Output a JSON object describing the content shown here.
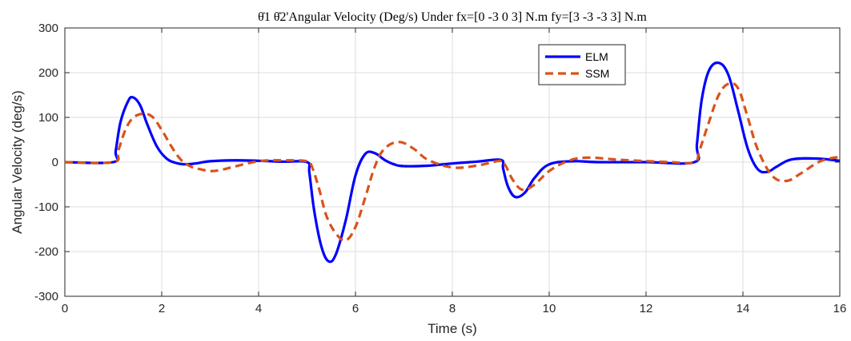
{
  "chart_data": {
    "type": "line",
    "title": "θ̇1 θ̇2'Angular Velocity (Deg/s) Under fx=[0 -3 0 3] N.m fy=[3 -3 -3 3] N.m",
    "xlabel": "Time (s)",
    "ylabel": "Angular Velocity (deg/s)",
    "xlim": [
      0,
      16
    ],
    "ylim": [
      -300,
      300
    ],
    "xticks": [
      0,
      2,
      4,
      6,
      8,
      10,
      12,
      14,
      16
    ],
    "yticks": [
      -300,
      -200,
      -100,
      0,
      100,
      200,
      300
    ],
    "grid": true,
    "legend_position": "top-right",
    "series": [
      {
        "name": "ELM",
        "color": "#0000ff",
        "style": "solid",
        "x": [
          0,
          1.0,
          1.05,
          1.15,
          1.3,
          1.4,
          1.55,
          1.7,
          1.9,
          2.1,
          2.3,
          2.5,
          2.7,
          3.0,
          3.5,
          4.0,
          4.5,
          5.0,
          5.05,
          5.15,
          5.3,
          5.45,
          5.6,
          5.8,
          6.0,
          6.2,
          6.4,
          6.6,
          6.8,
          7.0,
          7.5,
          8.0,
          8.5,
          9.0,
          9.05,
          9.15,
          9.3,
          9.5,
          9.7,
          10.0,
          10.5,
          11.0,
          12.0,
          13.0,
          13.05,
          13.15,
          13.3,
          13.5,
          13.7,
          13.9,
          14.1,
          14.3,
          14.5,
          14.7,
          15.0,
          15.5,
          16.0
        ],
        "y": [
          0,
          0,
          25,
          90,
          135,
          145,
          128,
          85,
          35,
          8,
          -2,
          -5,
          -3,
          2,
          4,
          3,
          1,
          0,
          -25,
          -110,
          -190,
          -222,
          -205,
          -130,
          -30,
          18,
          20,
          5,
          -5,
          -9,
          -8,
          -3,
          1,
          5,
          -15,
          -55,
          -78,
          -68,
          -35,
          -5,
          2,
          0,
          0,
          0,
          40,
          140,
          205,
          222,
          195,
          115,
          30,
          -15,
          -22,
          -10,
          6,
          8,
          3
        ]
      },
      {
        "name": "SSM",
        "color": "#d95319",
        "style": "dashed",
        "x": [
          0,
          1.0,
          1.1,
          1.25,
          1.4,
          1.6,
          1.8,
          2.0,
          2.2,
          2.4,
          2.6,
          2.8,
          3.0,
          3.2,
          3.5,
          4.0,
          4.5,
          5.0,
          5.1,
          5.25,
          5.4,
          5.6,
          5.8,
          6.0,
          6.2,
          6.4,
          6.6,
          6.9,
          7.2,
          7.5,
          8.0,
          8.5,
          9.0,
          9.1,
          9.25,
          9.45,
          9.7,
          10.0,
          10.4,
          10.8,
          11.5,
          12.5,
          13.0,
          13.1,
          13.3,
          13.5,
          13.7,
          13.9,
          14.1,
          14.3,
          14.6,
          14.9,
          15.2,
          15.6,
          16.0
        ],
        "y": [
          0,
          0,
          25,
          72,
          98,
          108,
          102,
          72,
          35,
          5,
          -10,
          -16,
          -20,
          -18,
          -10,
          2,
          4,
          2,
          -10,
          -60,
          -120,
          -160,
          -175,
          -145,
          -80,
          -10,
          30,
          45,
          30,
          5,
          -12,
          -8,
          3,
          -8,
          -40,
          -62,
          -50,
          -20,
          3,
          10,
          5,
          0,
          0,
          25,
          90,
          150,
          175,
          165,
          100,
          30,
          -30,
          -42,
          -25,
          2,
          12
        ]
      }
    ]
  }
}
